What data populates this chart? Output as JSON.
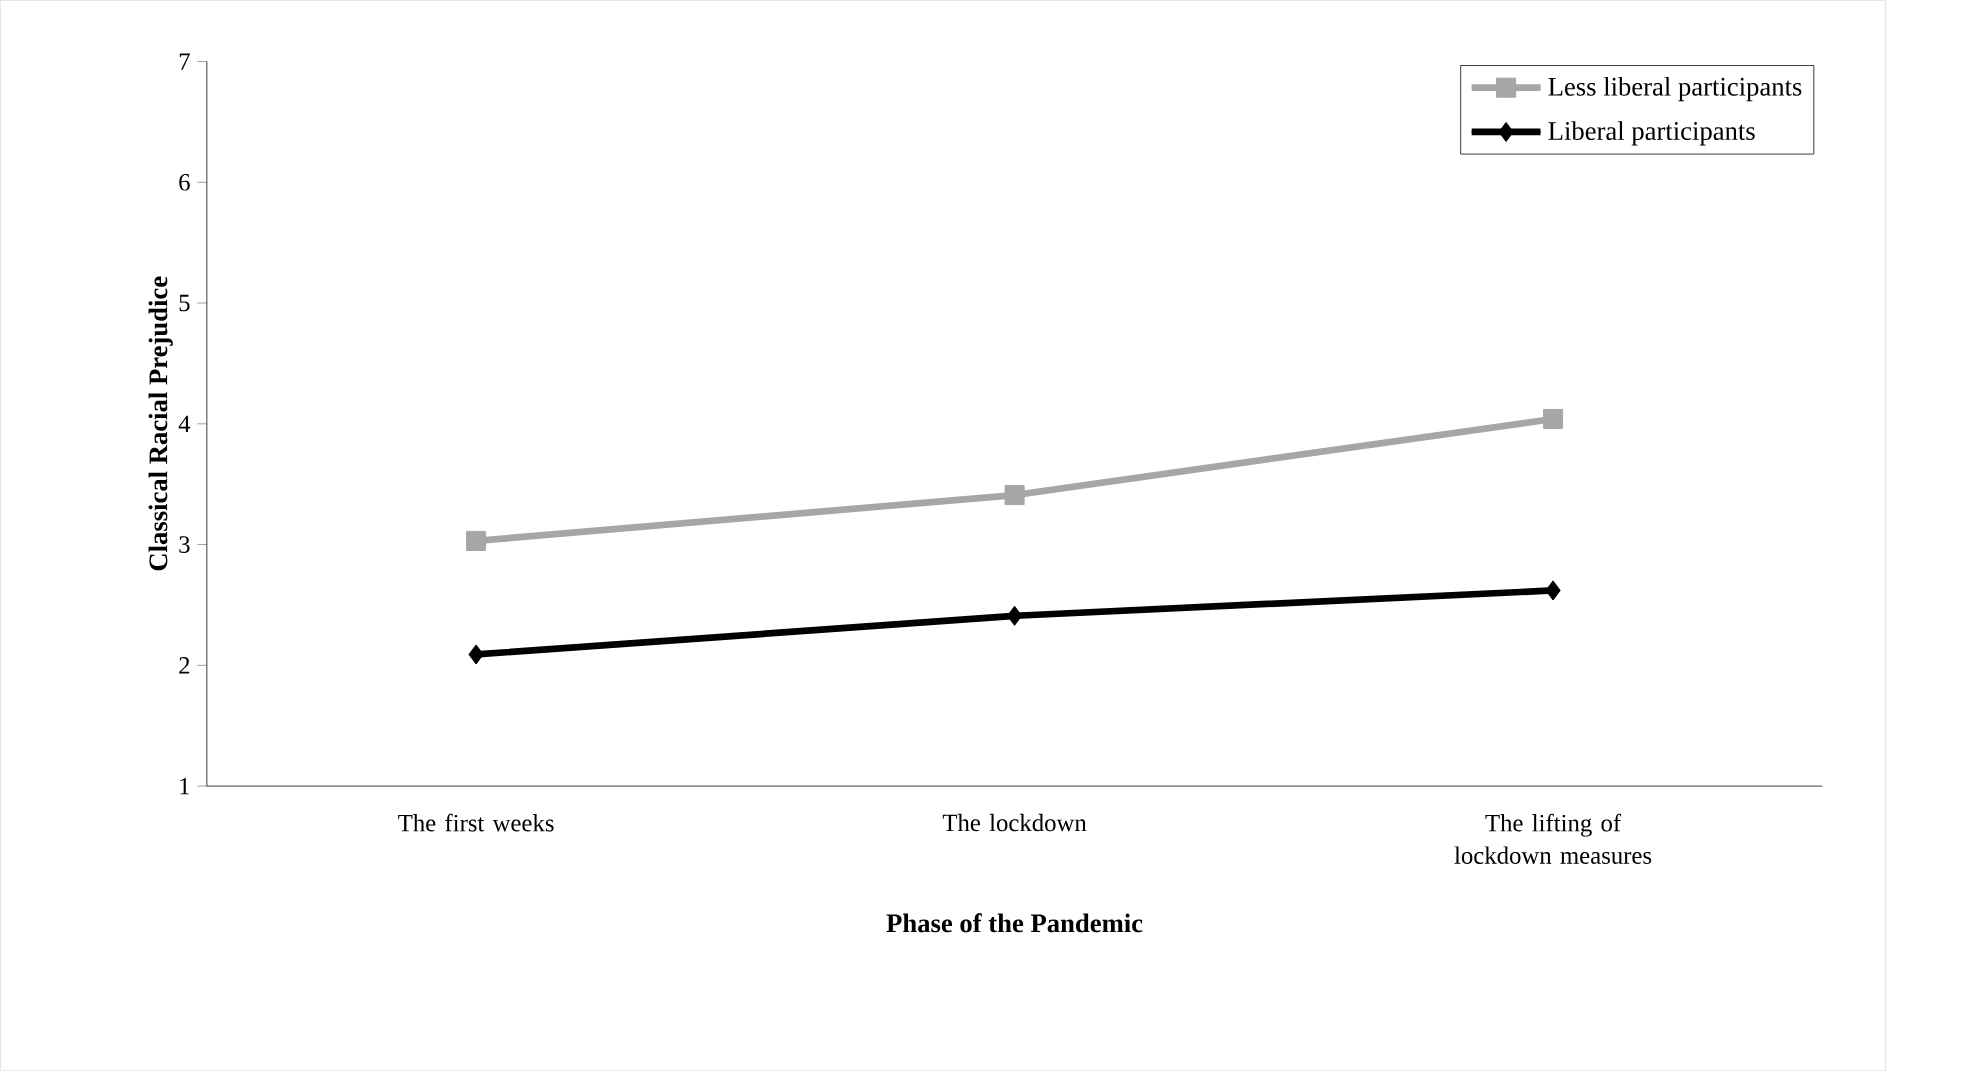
{
  "chart_data": {
    "type": "line",
    "xlabel": "Phase of the Pandemic",
    "ylabel": "Classical Racial Prejudice",
    "categories": [
      "The first weeks",
      "The lockdown",
      "The lifting of lockdown measures"
    ],
    "series": [
      {
        "name": "Less liberal participants",
        "color": "#a6a6a6",
        "marker": "square",
        "values": [
          3.03,
          3.41,
          4.04
        ]
      },
      {
        "name": "Liberal participants",
        "color": "#000000",
        "marker": "diamond",
        "values": [
          2.09,
          2.41,
          2.62
        ]
      }
    ],
    "ylim": [
      1,
      7
    ],
    "yticks": [
      1,
      2,
      3,
      4,
      5,
      6,
      7
    ],
    "grid": false,
    "legend": "top right",
    "line_style": "solid"
  }
}
